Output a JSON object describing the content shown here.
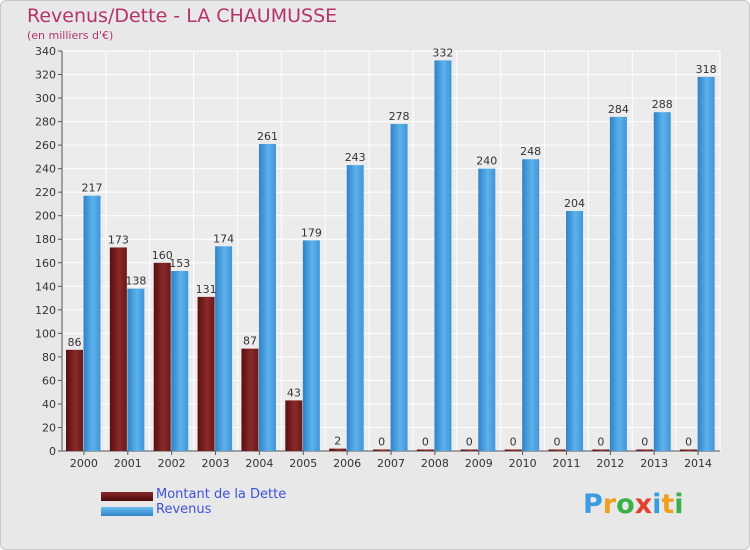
{
  "header": {
    "title": "Revenus/Dette - LA CHAUMUSSE",
    "subtitle": "(en milliers d'€)"
  },
  "legend": {
    "items": [
      {
        "label": "Montant de la Dette",
        "color": "#6b1a1a"
      },
      {
        "label": "Revenus",
        "color": "#4aa3e0"
      }
    ]
  },
  "logo": {
    "letters": [
      "P",
      "r",
      "o",
      "x",
      "i",
      "t",
      "i"
    ],
    "colors": [
      "#3a9be0",
      "#f0a020",
      "#3ab04a",
      "#e04030",
      "#3a9be0",
      "#f0a020",
      "#3ab04a"
    ]
  },
  "chart_data": {
    "type": "bar",
    "title": "Revenus/Dette - LA CHAUMUSSE",
    "subtitle": "(en milliers d'€)",
    "categories": [
      "2000",
      "2001",
      "2002",
      "2003",
      "2004",
      "2005",
      "2006",
      "2007",
      "2008",
      "2009",
      "2010",
      "2011",
      "2012",
      "2013",
      "2014"
    ],
    "series": [
      {
        "name": "Montant de la Dette",
        "color": "#7a1f1f",
        "values": [
          86,
          173,
          160,
          131,
          87,
          43,
          2,
          0,
          0,
          0,
          0,
          0,
          0,
          0,
          0
        ]
      },
      {
        "name": "Revenus",
        "color": "#4aa3e0",
        "values": [
          217,
          138,
          153,
          174,
          261,
          179,
          243,
          278,
          332,
          240,
          248,
          204,
          284,
          288,
          318
        ]
      }
    ],
    "ylim": [
      0,
      340
    ],
    "yticks": [
      0,
      20,
      40,
      60,
      80,
      100,
      120,
      140,
      160,
      180,
      200,
      220,
      240,
      260,
      280,
      300,
      320,
      340
    ],
    "grid": true,
    "legend_position": "bottom-left"
  }
}
